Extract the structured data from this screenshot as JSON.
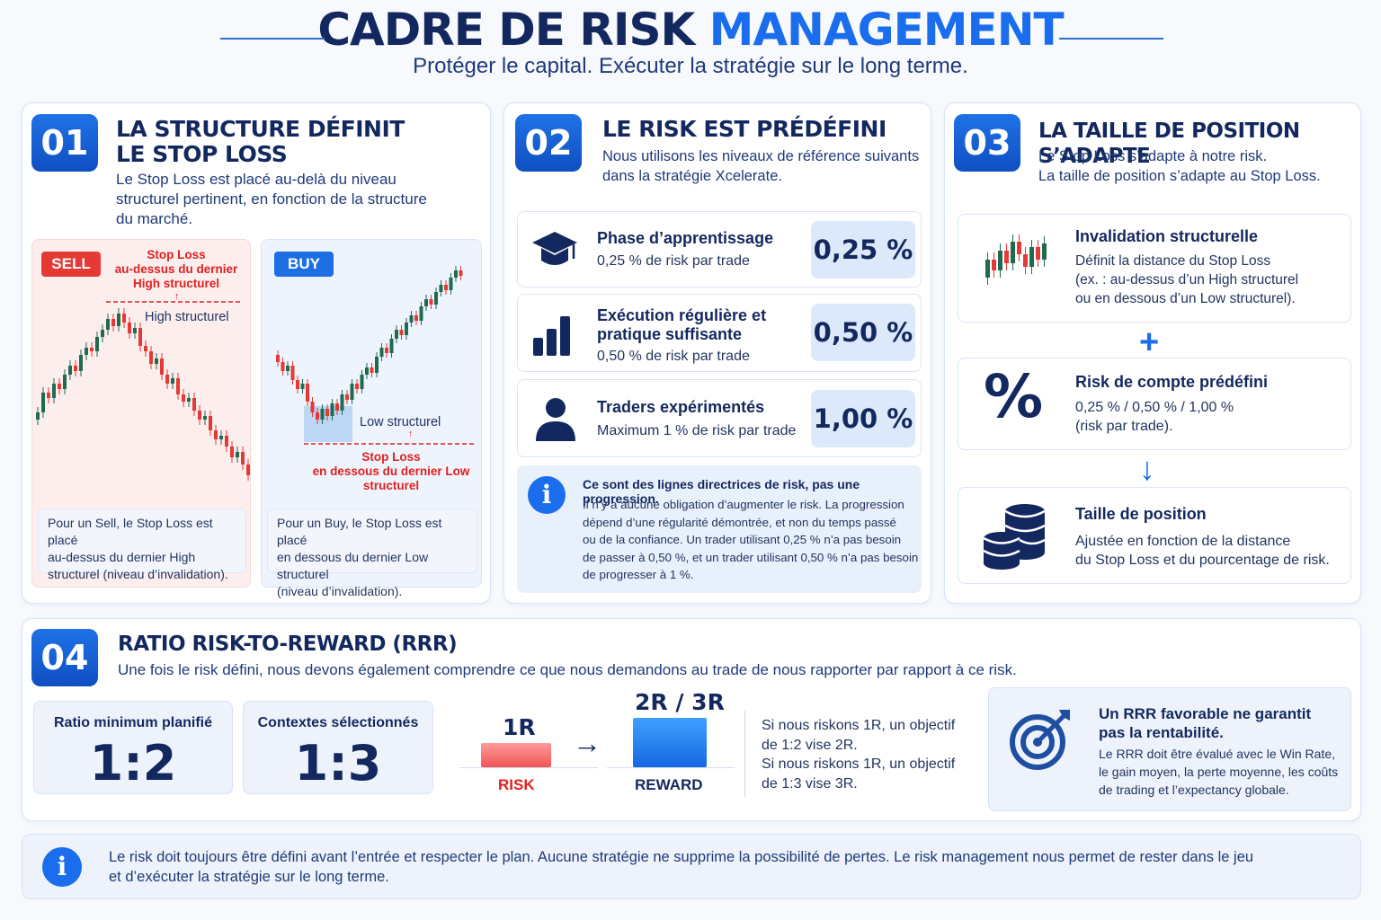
{
  "header": {
    "title_part1": "CADRE DE RISK ",
    "title_part2": "MANAGEMENT",
    "subtitle": "Protéger le capital. Exécuter la stratégie sur le long terme."
  },
  "colors": {
    "primary": "#1a6dec",
    "navy": "#13285e",
    "sell_red": "#e53935",
    "buy_blue": "#1e6fe3",
    "candle_green": "#1f6b4f"
  },
  "s1": {
    "num": "01",
    "title_line1": "LA STRUCTURE DÉFINIT",
    "title_line2": "LE STOP LOSS",
    "desc_line1": "Le Stop Loss est placé au-delà du niveau",
    "desc_line2": "structurel pertinent, en fonction de la structure",
    "desc_line3": "du marché.",
    "sell": {
      "tag": "SELL",
      "sl_l1": "Stop Loss",
      "sl_l2": "au-dessus du dernier",
      "sl_l3": "High structurel",
      "level": "High structurel",
      "note_l1": "Pour un Sell, le Stop Loss est placé",
      "note_l2": "au-dessus du dernier High",
      "note_l3": "structurel (niveau d’invalidation)."
    },
    "buy": {
      "tag": "BUY",
      "level": "Low structurel",
      "sl_l1": "Stop Loss",
      "sl_l2": "en dessous du dernier Low",
      "sl_l3": "structurel",
      "note_l1": "Pour un Buy, le Stop Loss est placé",
      "note_l2": "en dessous du dernier Low structurel",
      "note_l3": "(niveau d’invalidation)."
    }
  },
  "s2": {
    "num": "02",
    "title": "LE RISK EST PRÉDÉFINI",
    "desc_line1": "Nous utilisons les niveaux de référence suivants",
    "desc_line2": "dans la stratégie Xcelerate.",
    "rows": [
      {
        "icon": "graduation-cap-icon",
        "title_l1": "Phase d’apprentissage",
        "title_l2": "",
        "sub": "0,25 % de risk par trade",
        "pct": "0,25 %"
      },
      {
        "icon": "bar-chart-icon",
        "title_l1": "Exécution régulière et",
        "title_l2": "pratique suffisante",
        "sub": "0,50 % de risk par trade",
        "pct": "0,50 %"
      },
      {
        "icon": "user-icon",
        "title_l1": "Traders expérimentés",
        "title_l2": "",
        "sub": "Maximum 1 % de risk par trade",
        "pct": "1,00 %"
      }
    ],
    "info_title": "Ce sont des lignes directrices de risk, pas une progression.",
    "info_l1": "Il n’y a aucune obligation d’augmenter le risk. La progression",
    "info_l2": "dépend d’une régularité démontrée, et non du temps passé",
    "info_l3": "ou de la confiance. Un trader utilisant 0,25 % n’a pas besoin",
    "info_l4": "de passer à 0,50 %, et un trader utilisant 0,50 % n’a pas besoin",
    "info_l5": "de progresser à 1 %."
  },
  "s3": {
    "num": "03",
    "title": "LA TAILLE DE POSITION S’ADAPTE",
    "desc_line1": "Le Stop Loss s’adapte à notre risk.",
    "desc_line2": "La taille de position s’adapte au Stop Loss.",
    "items": [
      {
        "icon": "candlestick-icon",
        "title": "Invalidation structurelle",
        "l1": "Définit la distance du Stop Loss",
        "l2": "(ex. : au-dessus d’un High structurel",
        "l3": "ou en dessous d’un Low structurel)."
      },
      {
        "icon": "percent-icon",
        "icon_text": "%",
        "title": "Risk de compte prédéfini",
        "l1": "0,25 % / 0,50 % / 1,00 %",
        "l2": "(risk par trade).",
        "l3": ""
      },
      {
        "icon": "coins-icon",
        "title": "Taille de position",
        "l1": "Ajustée en fonction de la distance",
        "l2": "du Stop Loss et du pourcentage de risk.",
        "l3": ""
      }
    ],
    "plus": "+",
    "arrow": "↓"
  },
  "s4": {
    "num": "04",
    "title": "RATIO RISK-TO-REWARD (RRR)",
    "desc": "Une fois le risk défini, nous devons également comprendre ce que nous demandons au trade de nous rapporter par rapport à ce risk.",
    "box1_label": "Ratio minimum planifié",
    "box1_value": "1:2",
    "box2_label": "Contextes sélectionnés",
    "box2_value": "1:3",
    "risk_top": "1R",
    "risk_label": "RISK",
    "arrow": "→",
    "reward_top": "2R / 3R",
    "reward_label": "REWARD",
    "exp_l1": "Si nous riskons 1R, un objectif",
    "exp_l2": "de 1:2 vise 2R.",
    "exp_l3": "Si nous riskons 1R, un objectif",
    "exp_l4": "de 1:3 vise 3R.",
    "warn_title_l1": "Un RRR favorable ne garantit",
    "warn_title_l2": "pas la rentabilité.",
    "warn_l1": "Le RRR doit être évalué avec le Win Rate,",
    "warn_l2": "le gain moyen, la perte moyenne, les coûts",
    "warn_l3": "de trading et l’expectancy globale."
  },
  "footer": {
    "l1": "Le risk doit toujours être défini avant l’entrée et respecter le plan. Aucune stratégie ne supprime la possibilité de pertes. Le risk management nous permet de rester dans le jeu",
    "l2": "et d’exécuter la stratégie sur le long terme."
  }
}
